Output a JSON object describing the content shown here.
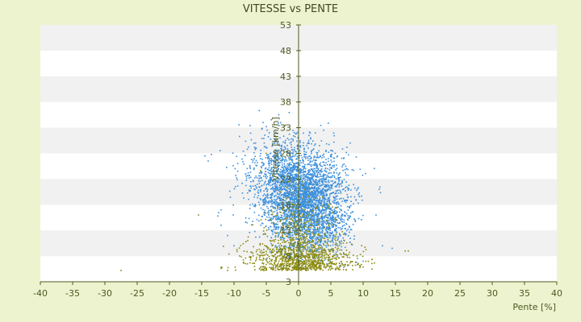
{
  "chart_data": {
    "type": "scatter",
    "title": "VITESSE vs PENTE",
    "xlabel": "Pente [%]",
    "ylabel": "Vitesse [km/h]",
    "xlim": [
      -40,
      40
    ],
    "ylim": [
      3,
      53
    ],
    "x_ticks": [
      "-40",
      "-35",
      "-30",
      "-25",
      "-20",
      "-15",
      "-10",
      "-5",
      "0",
      "5",
      "10",
      "15",
      "20",
      "25",
      "30",
      "35",
      "40"
    ],
    "y_ticks": [
      "3",
      "8",
      "13",
      "18",
      "23",
      "28",
      "33",
      "38",
      "43",
      "48",
      "53"
    ],
    "grid": "horizontal alternating bands",
    "colors": {
      "background": "#eef3cf",
      "plot_band_light": "#ffffff",
      "plot_band_dark": "#f1f1f1",
      "axis": "#4f5a1c",
      "series_blue": "#3b8fdc",
      "series_olive": "#8a8a10"
    },
    "series": [
      {
        "color_key": "series_blue",
        "clusters": [
          {
            "cx": 0.5,
            "cy": 20,
            "sx": 3.4,
            "sy": 4.2,
            "n": 2400
          },
          {
            "cx": 2.0,
            "cy": 14,
            "sx": 3.0,
            "sy": 3.2,
            "n": 900
          },
          {
            "cx": -2.5,
            "cy": 25,
            "sx": 3.2,
            "sy": 4.0,
            "n": 450
          }
        ],
        "outliers": [
          [
            -14.5,
            27.5
          ],
          [
            -13.5,
            27.8
          ],
          [
            -14,
            26.5
          ],
          [
            -5.5,
            34
          ],
          [
            -5,
            33.2
          ],
          [
            8,
            30
          ],
          [
            7.5,
            29.2
          ],
          [
            12.5,
            21
          ],
          [
            12,
            16
          ],
          [
            13,
            10
          ],
          [
            14.5,
            9.5
          ],
          [
            10,
            7
          ],
          [
            -12,
            17
          ],
          [
            -12.5,
            15.8
          ],
          [
            -12,
            14
          ],
          [
            -11,
            12
          ],
          [
            -10,
            10
          ]
        ]
      },
      {
        "color_key": "series_olive",
        "clusters": [
          {
            "cx": 0.5,
            "cy": 7.5,
            "sx": 4.0,
            "sy": 2.0,
            "n": 950
          },
          {
            "cx": 0.0,
            "cy": 13.5,
            "sx": 2.5,
            "sy": 3.5,
            "n": 280
          }
        ],
        "outliers": [
          [
            -27.5,
            5.2
          ],
          [
            -15.5,
            16
          ],
          [
            -12,
            5.8
          ],
          [
            -11,
            5.2
          ],
          [
            16.5,
            9
          ],
          [
            17,
            9
          ],
          [
            -5,
            28
          ],
          [
            -4.5,
            27
          ],
          [
            -3.5,
            31
          ],
          [
            -2,
            33.5
          ]
        ]
      }
    ]
  }
}
